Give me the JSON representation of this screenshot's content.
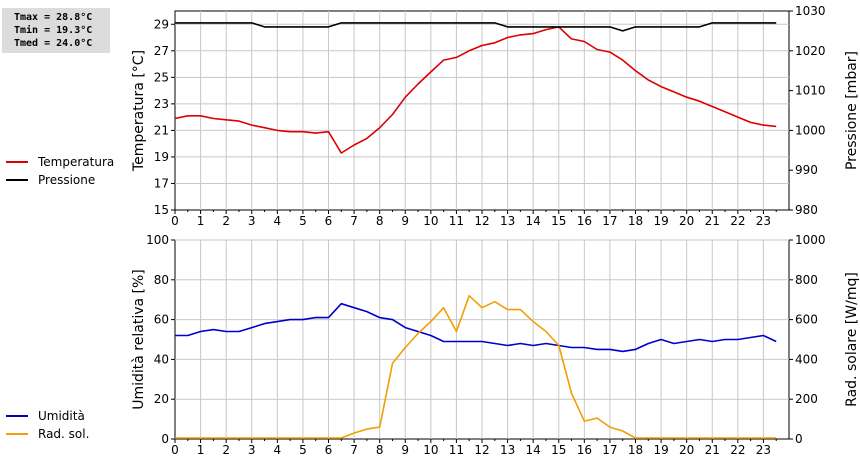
{
  "stats": {
    "tmax": "Tmax = 28.8°C",
    "tmin": "Tmin = 19.3°C",
    "tmed": "Tmed = 24.0°C"
  },
  "colors": {
    "temperature": "#dd0000",
    "pressure": "#000000",
    "humidity": "#0000cc",
    "radiation": "#f0a000",
    "grid": "#c8c8c8"
  },
  "chart_data": [
    {
      "type": "line",
      "xlim": [
        0,
        24
      ],
      "xticks": [
        "0",
        "1",
        "2",
        "3",
        "4",
        "5",
        "6",
        "7",
        "8",
        "9",
        "10",
        "11",
        "12",
        "13",
        "14",
        "15",
        "16",
        "17",
        "18",
        "19",
        "20",
        "21",
        "22",
        "23"
      ],
      "ylabel": "Temperatura [°C]",
      "y2label": "Pressione [mbar]",
      "ylim": [
        15,
        30
      ],
      "yticks": [
        "15",
        "17",
        "19",
        "21",
        "23",
        "25",
        "27",
        "29"
      ],
      "y2lim": [
        980,
        1030
      ],
      "y2ticks": [
        "980",
        "990",
        "1000",
        "1010",
        "1020",
        "1030"
      ],
      "grid": true,
      "series": [
        {
          "name": "Temperatura",
          "axis": "left",
          "x": [
            0,
            0.5,
            1,
            1.5,
            2,
            2.5,
            3,
            3.5,
            4,
            4.5,
            5,
            5.5,
            6,
            6.5,
            7,
            7.5,
            8,
            8.5,
            9,
            9.5,
            10,
            10.5,
            11,
            11.5,
            12,
            12.5,
            13,
            13.5,
            14,
            14.5,
            15,
            15.5,
            16,
            16.5,
            17,
            17.5,
            18,
            18.5,
            19,
            19.5,
            20,
            20.5,
            21,
            21.5,
            22,
            22.5,
            23,
            23.5
          ],
          "y": [
            21.9,
            22.1,
            22.1,
            21.9,
            21.8,
            21.7,
            21.4,
            21.2,
            21.0,
            20.9,
            20.9,
            20.8,
            20.9,
            19.3,
            19.9,
            20.4,
            21.2,
            22.2,
            23.5,
            24.5,
            25.4,
            26.3,
            26.5,
            27.0,
            27.4,
            27.6,
            28.0,
            28.2,
            28.3,
            28.6,
            28.8,
            27.9,
            27.7,
            27.1,
            26.9,
            26.3,
            25.5,
            24.8,
            24.3,
            23.9,
            23.5,
            23.2,
            22.8,
            22.4,
            22.0,
            21.6,
            21.4,
            21.3
          ]
        },
        {
          "name": "Pressione",
          "axis": "right",
          "x": [
            0,
            0.5,
            1,
            1.5,
            2,
            2.5,
            3,
            3.5,
            4,
            4.5,
            5,
            5.5,
            6,
            6.5,
            7,
            7.5,
            8,
            8.5,
            9,
            9.5,
            10,
            10.5,
            11,
            11.5,
            12,
            12.5,
            13,
            13.5,
            14,
            14.5,
            15,
            15.5,
            16,
            16.5,
            17,
            17.5,
            18,
            18.5,
            19,
            19.5,
            20,
            20.5,
            21,
            21.5,
            22,
            22.5,
            23,
            23.5
          ],
          "y": [
            1027,
            1027,
            1027,
            1027,
            1027,
            1027,
            1027,
            1026,
            1026,
            1026,
            1026,
            1026,
            1026,
            1027,
            1027,
            1027,
            1027,
            1027,
            1027,
            1027,
            1027,
            1027,
            1027,
            1027,
            1027,
            1027,
            1026,
            1026,
            1026,
            1026,
            1026,
            1026,
            1026,
            1026,
            1026,
            1025,
            1026,
            1026,
            1026,
            1026,
            1026,
            1026,
            1027,
            1027,
            1027,
            1027,
            1027,
            1027
          ]
        }
      ]
    },
    {
      "type": "line",
      "xlim": [
        0,
        24
      ],
      "xticks": [
        "0",
        "1",
        "2",
        "3",
        "4",
        "5",
        "6",
        "7",
        "8",
        "9",
        "10",
        "11",
        "12",
        "13",
        "14",
        "15",
        "16",
        "17",
        "18",
        "19",
        "20",
        "21",
        "22",
        "23"
      ],
      "ylabel": "Umidità relativa [%]",
      "y2label": "Rad. solare [W/mq]",
      "ylim": [
        0,
        100
      ],
      "yticks": [
        "0",
        "20",
        "40",
        "60",
        "80",
        "100"
      ],
      "y2lim": [
        0,
        1000
      ],
      "y2ticks": [
        "0",
        "200",
        "400",
        "600",
        "800",
        "1000"
      ],
      "grid": true,
      "series": [
        {
          "name": "Umidità",
          "axis": "left",
          "x": [
            0,
            0.5,
            1,
            1.5,
            2,
            2.5,
            3,
            3.5,
            4,
            4.5,
            5,
            5.5,
            6,
            6.5,
            7,
            7.5,
            8,
            8.5,
            9,
            9.5,
            10,
            10.5,
            11,
            11.5,
            12,
            12.5,
            13,
            13.5,
            14,
            14.5,
            15,
            15.5,
            16,
            16.5,
            17,
            17.5,
            18,
            18.5,
            19,
            19.5,
            20,
            20.5,
            21,
            21.5,
            22,
            22.5,
            23,
            23.5
          ],
          "y": [
            52,
            52,
            54,
            55,
            54,
            54,
            56,
            58,
            59,
            60,
            60,
            61,
            61,
            68,
            66,
            64,
            61,
            60,
            56,
            54,
            52,
            49,
            49,
            49,
            49,
            48,
            47,
            48,
            47,
            48,
            47,
            46,
            46,
            45,
            45,
            44,
            45,
            48,
            50,
            48,
            49,
            50,
            49,
            50,
            50,
            51,
            52,
            49
          ]
        },
        {
          "name": "Rad. sol.",
          "axis": "right",
          "x": [
            0,
            0.5,
            1,
            1.5,
            2,
            2.5,
            3,
            3.5,
            4,
            4.5,
            5,
            5.5,
            6,
            6.5,
            7,
            7.5,
            8,
            8.5,
            9,
            9.5,
            10,
            10.5,
            11,
            11.5,
            12,
            12.5,
            13,
            13.5,
            14,
            14.5,
            15,
            15.5,
            16,
            16.5,
            17,
            17.5,
            18,
            18.5,
            19,
            19.5,
            20,
            20.5,
            21,
            21.5,
            22,
            22.5,
            23,
            23.5
          ],
          "y": [
            5,
            5,
            5,
            5,
            5,
            5,
            5,
            5,
            5,
            5,
            5,
            5,
            5,
            5,
            30,
            50,
            60,
            380,
            460,
            530,
            590,
            660,
            540,
            720,
            660,
            690,
            650,
            650,
            590,
            540,
            470,
            230,
            90,
            105,
            60,
            40,
            5,
            5,
            5,
            5,
            5,
            5,
            5,
            5,
            5,
            5,
            5,
            5
          ]
        }
      ]
    }
  ]
}
